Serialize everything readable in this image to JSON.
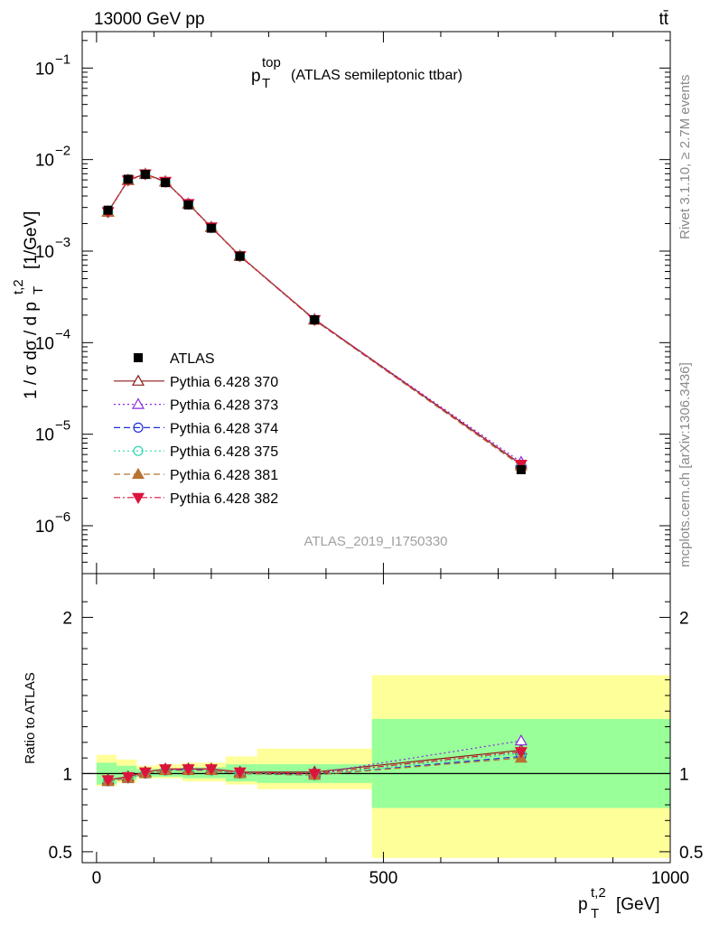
{
  "header": {
    "energy_label": "13000 GeV pp",
    "process_label": "tt̄"
  },
  "side_text": {
    "rivet": "Rivet 3.1.10, ≥ 2.7M events",
    "mcplots": "mcplots.cern.ch [arXiv:1306.3436]"
  },
  "watermark": "ATLAS_2019_I1750330",
  "chart_data": {
    "type": "line",
    "title": "p_T^top (ATLAS semileptonic ttbar)",
    "title_parts": {
      "p": "p",
      "sup": "top",
      "sub": "T",
      "rest": "(ATLAS semileptonic ttbar)"
    },
    "xlabel": "p_T^{t,2} [GeV]",
    "xlabel_parts": {
      "p": "p",
      "sup": "t,2",
      "sub": "T",
      "unit": "[GeV]"
    },
    "ylabel": "1 / σ dσ / d p_T^{t,2} [1/GeV]",
    "ylabel_parts": {
      "main": "1 / σ dσ / d p",
      "sup": "t,2",
      "sub": "T",
      "unit": "[1/GeV]"
    },
    "ratio_ylabel": "Ratio to ATLAS",
    "xlim": [
      -25,
      1000
    ],
    "ylim_log": [
      3e-07,
      0.25
    ],
    "ratio_ylim": [
      0.43,
      2.28
    ],
    "x_ticks": [
      0,
      500,
      1000
    ],
    "x_tick_labels": [
      "0",
      "500",
      "1000"
    ],
    "y_ticks": [
      0.1,
      0.01,
      0.001,
      0.0001,
      1e-05,
      1e-06
    ],
    "y_tick_labels": [
      {
        "base": "10",
        "exp": "−1"
      },
      {
        "base": "10",
        "exp": "−2"
      },
      {
        "base": "10",
        "exp": "−3"
      },
      {
        "base": "10",
        "exp": "−4"
      },
      {
        "base": "10",
        "exp": "−5"
      },
      {
        "base": "10",
        "exp": "−6"
      }
    ],
    "ratio_ticks": [
      0.5,
      1,
      2
    ],
    "ratio_tick_labels": [
      "0.5",
      "1",
      "2"
    ],
    "bins": [
      0,
      35,
      70,
      105,
      150,
      180,
      225,
      280,
      480,
      1000
    ],
    "x": [
      20,
      55,
      85,
      120,
      160,
      200,
      250,
      380,
      740
    ],
    "data": {
      "name": "ATLAS",
      "values": [
        0.0028,
        0.0061,
        0.0069,
        0.0056,
        0.0032,
        0.00178,
        0.00088,
        0.000178,
        4.1e-06
      ],
      "band_inner": [
        [
          0.93,
          1.07
        ],
        [
          0.96,
          1.05
        ],
        [
          0.98,
          1.03
        ],
        [
          0.98,
          1.03
        ],
        [
          0.97,
          1.04
        ],
        [
          0.97,
          1.04
        ],
        [
          0.95,
          1.06
        ],
        [
          0.94,
          1.06
        ],
        [
          0.78,
          1.35
        ]
      ],
      "band_outer": [
        [
          0.92,
          1.12
        ],
        [
          0.94,
          1.09
        ],
        [
          0.97,
          1.05
        ],
        [
          0.97,
          1.06
        ],
        [
          0.95,
          1.07
        ],
        [
          0.95,
          1.07
        ],
        [
          0.93,
          1.11
        ],
        [
          0.9,
          1.16
        ],
        [
          0.46,
          1.63
        ]
      ]
    },
    "series": [
      {
        "name": "Pythia 6.428 370",
        "color": "#8b1a1a",
        "dash": "",
        "marker": "triangle-up-open",
        "ratios": [
          0.96,
          0.98,
          1.01,
          1.03,
          1.03,
          1.03,
          1.01,
          1.01,
          1.15
        ]
      },
      {
        "name": "Pythia 6.428 373",
        "color": "#8a2be2",
        "dash": "2,3",
        "marker": "triangle-up-open",
        "ratios": [
          0.95,
          0.97,
          1.0,
          1.02,
          1.02,
          1.02,
          1.0,
          1.0,
          1.21
        ]
      },
      {
        "name": "Pythia 6.428 374",
        "color": "#1f2fd6",
        "dash": "7,4",
        "marker": "circle-open",
        "ratios": [
          0.95,
          0.97,
          1.0,
          1.02,
          1.03,
          1.02,
          1.0,
          0.99,
          1.11
        ]
      },
      {
        "name": "Pythia 6.428 375",
        "color": "#2bd6b0",
        "dash": "2,3",
        "marker": "circle-open",
        "ratios": [
          0.95,
          0.97,
          1.0,
          1.02,
          1.02,
          1.02,
          1.0,
          0.99,
          1.13
        ]
      },
      {
        "name": "Pythia 6.428 381",
        "color": "#b87333",
        "dash": "7,4",
        "marker": "triangle-up-filled",
        "ratios": [
          0.95,
          0.97,
          1.0,
          1.02,
          1.02,
          1.02,
          1.0,
          0.99,
          1.1
        ]
      },
      {
        "name": "Pythia 6.428 382",
        "color": "#dc143c",
        "dash": "7,3,2,3",
        "marker": "triangle-down-filled",
        "ratios": [
          0.96,
          0.98,
          1.01,
          1.03,
          1.03,
          1.03,
          1.01,
          1.0,
          1.14
        ]
      }
    ]
  }
}
